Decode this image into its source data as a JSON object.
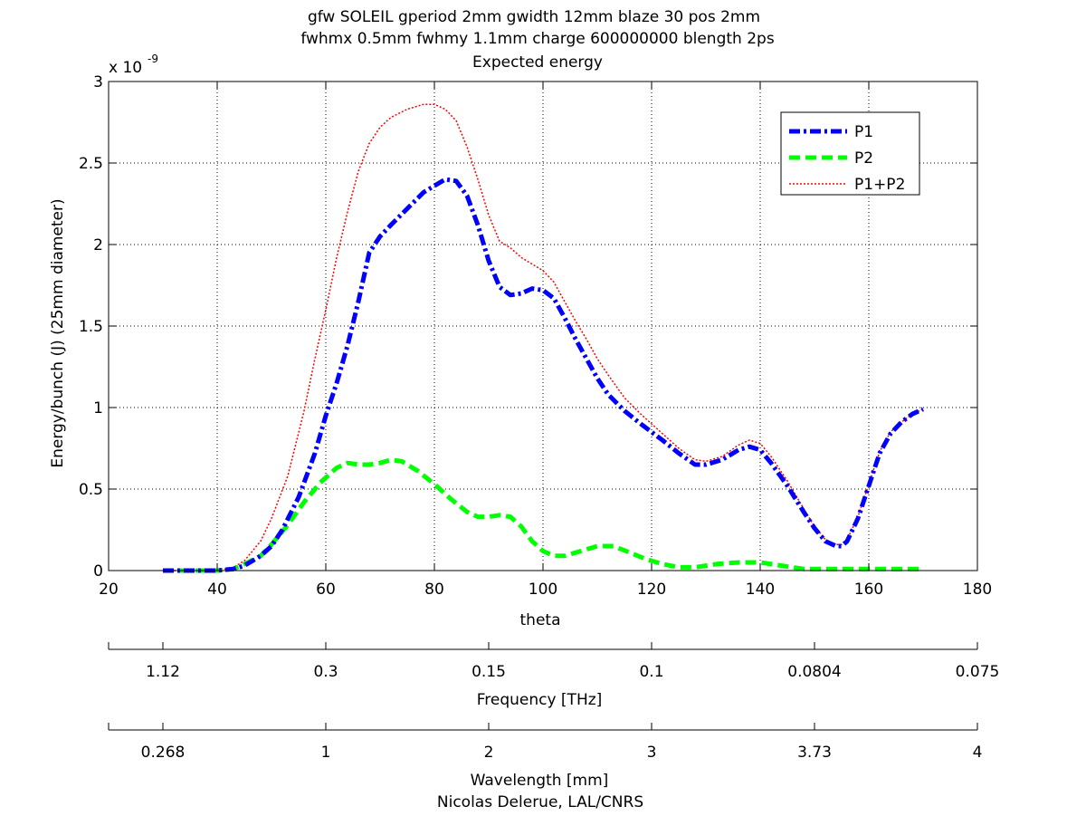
{
  "colors": {
    "background": "#ffffff",
    "axis": "#000000",
    "grid": "#000000",
    "P1": "#0000ff",
    "P2": "#00ff00",
    "P1+P2": "#ff0000"
  },
  "chart_data": {
    "type": "line",
    "title": [
      "gfw SOLEIL gperiod 2mm gwidth 12mm blaze 30 pos 2mm",
      "fwhmx 0.5mm fwhmy 1.1mm charge 600000000 blength 2ps",
      "Expected energy"
    ],
    "xlabel": "theta",
    "ylabel": "Energy/bunch (J) (25mm diameter)",
    "y_exponent_base": "x 10",
    "y_exponent_power": "-9",
    "xlim": [
      20,
      180
    ],
    "ylim": [
      0,
      3
    ],
    "xticks": [
      "20",
      "40",
      "60",
      "80",
      "100",
      "120",
      "140",
      "160",
      "180"
    ],
    "yticks": [
      "0",
      "0.5",
      "1",
      "1.5",
      "2",
      "2.5",
      "3"
    ],
    "grid": true,
    "grid_style": "dotted",
    "legend_position": "top-right",
    "series": [
      {
        "name": "P1",
        "style": "dash-dot",
        "x": [
          30,
          40,
          43,
          45,
          48,
          50,
          52,
          55,
          58,
          60,
          62,
          64,
          66,
          68,
          70,
          72,
          75,
          78,
          80,
          82,
          84,
          86,
          88,
          90,
          92,
          94,
          96,
          98,
          100,
          102,
          104,
          106,
          108,
          110,
          112,
          115,
          118,
          120,
          122,
          125,
          128,
          130,
          133,
          136,
          138,
          140,
          142,
          145,
          148,
          150,
          152,
          154,
          155,
          156,
          158,
          160,
          162,
          164,
          166,
          168,
          170
        ],
        "y": [
          0,
          0,
          0.01,
          0.03,
          0.09,
          0.15,
          0.25,
          0.45,
          0.72,
          0.95,
          1.15,
          1.38,
          1.65,
          1.95,
          2.05,
          2.12,
          2.22,
          2.32,
          2.36,
          2.4,
          2.39,
          2.3,
          2.12,
          1.9,
          1.74,
          1.69,
          1.7,
          1.73,
          1.72,
          1.67,
          1.55,
          1.42,
          1.3,
          1.18,
          1.08,
          0.98,
          0.9,
          0.85,
          0.8,
          0.72,
          0.65,
          0.65,
          0.68,
          0.74,
          0.76,
          0.74,
          0.66,
          0.52,
          0.36,
          0.26,
          0.18,
          0.15,
          0.15,
          0.18,
          0.32,
          0.52,
          0.72,
          0.84,
          0.91,
          0.96,
          0.99
        ]
      },
      {
        "name": "P2",
        "style": "dashed",
        "x": [
          30,
          40,
          43,
          45,
          48,
          50,
          53,
          56,
          59,
          62,
          64,
          66,
          68,
          70,
          72,
          74,
          77,
          80,
          83,
          86,
          88,
          90,
          92,
          94,
          96,
          98,
          100,
          102,
          104,
          106,
          108,
          110,
          113,
          116,
          119,
          122,
          125,
          128,
          132,
          136,
          140,
          144,
          148,
          152,
          156,
          160,
          165,
          170
        ],
        "y": [
          0,
          0,
          0.01,
          0.04,
          0.09,
          0.16,
          0.28,
          0.42,
          0.54,
          0.63,
          0.66,
          0.65,
          0.65,
          0.66,
          0.68,
          0.67,
          0.61,
          0.53,
          0.44,
          0.36,
          0.33,
          0.33,
          0.34,
          0.33,
          0.27,
          0.18,
          0.12,
          0.09,
          0.09,
          0.11,
          0.13,
          0.15,
          0.15,
          0.11,
          0.07,
          0.04,
          0.02,
          0.02,
          0.04,
          0.05,
          0.05,
          0.03,
          0.01,
          0.01,
          0.01,
          0.01,
          0.01,
          0.01
        ]
      },
      {
        "name": "P1+P2",
        "style": "dotted",
        "x": [
          30,
          40,
          43,
          45,
          48,
          50,
          53,
          56,
          58,
          60,
          62,
          64,
          66,
          68,
          70,
          72,
          75,
          78,
          80,
          82,
          84,
          86,
          88,
          90,
          92,
          94,
          96,
          98,
          100,
          102,
          104,
          106,
          108,
          110,
          112,
          115,
          118,
          120,
          122,
          125,
          128,
          130,
          133,
          136,
          138,
          140,
          142,
          145,
          148,
          150,
          152,
          154,
          155,
          156,
          158,
          160,
          162,
          164,
          166,
          168,
          170
        ],
        "y": [
          0,
          0,
          0.02,
          0.06,
          0.18,
          0.32,
          0.58,
          0.98,
          1.3,
          1.6,
          1.92,
          2.2,
          2.45,
          2.62,
          2.72,
          2.78,
          2.83,
          2.86,
          2.86,
          2.83,
          2.76,
          2.6,
          2.4,
          2.18,
          2.02,
          1.98,
          1.92,
          1.88,
          1.84,
          1.77,
          1.65,
          1.53,
          1.42,
          1.3,
          1.2,
          1.06,
          0.96,
          0.9,
          0.84,
          0.75,
          0.68,
          0.67,
          0.7,
          0.77,
          0.8,
          0.78,
          0.7,
          0.55,
          0.38,
          0.27,
          0.19,
          0.16,
          0.16,
          0.19,
          0.33,
          0.53,
          0.73,
          0.85,
          0.91,
          0.96,
          0.99
        ]
      }
    ],
    "secondary_axes": [
      {
        "label": "Frequency [THz]",
        "ticks": [
          "1.12",
          "0.3",
          "0.15",
          "0.1",
          "0.0804",
          "0.075"
        ],
        "theta": [
          30,
          60,
          90,
          120,
          150,
          180
        ]
      },
      {
        "label": "Wavelength [mm]",
        "ticks": [
          "0.268",
          "1",
          "2",
          "3",
          "3.73",
          "4"
        ],
        "theta": [
          30,
          60,
          90,
          120,
          150,
          180
        ]
      }
    ],
    "credit": "Nicolas Delerue, LAL/CNRS"
  }
}
